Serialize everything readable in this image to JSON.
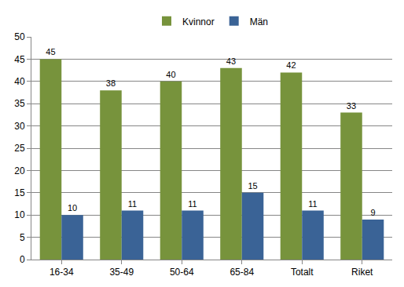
{
  "chart_data": {
    "type": "bar",
    "categories": [
      "16-34",
      "35-49",
      "50-64",
      "65-84",
      "Totalt",
      "Riket"
    ],
    "series": [
      {
        "name": "Kvinnor",
        "color": "#77933c",
        "values": [
          45,
          38,
          40,
          43,
          42,
          33
        ]
      },
      {
        "name": "Män",
        "color": "#3a6396",
        "values": [
          10,
          11,
          11,
          15,
          11,
          9
        ]
      }
    ],
    "ylim": [
      0,
      50
    ],
    "yticks": [
      0,
      5,
      10,
      15,
      20,
      25,
      30,
      35,
      40,
      45,
      50
    ],
    "grid": true,
    "legend": "top",
    "data_labels": true
  }
}
